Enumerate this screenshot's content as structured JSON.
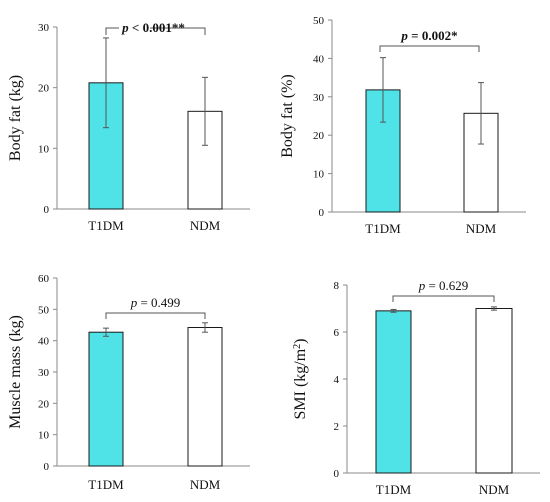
{
  "colors": {
    "t1dm": "#4fe3e8",
    "ndm": "#ffffff",
    "outline": "#1a1a1a",
    "axis": "#8a8a8a"
  },
  "chart_data": [
    {
      "type": "bar",
      "categories": [
        "T1DM",
        "NDM"
      ],
      "values": [
        20.8,
        16.1
      ],
      "errors": [
        7.4,
        5.6
      ],
      "ylabel": "Body fat (kg)",
      "ylim": [
        0,
        30
      ],
      "yticks": [
        "0",
        "10",
        "20",
        "30"
      ],
      "annotation": {
        "p": "p",
        "rest": " < 0.001**",
        "bold": true
      },
      "bracket_style": "split"
    },
    {
      "type": "bar",
      "categories": [
        "T1DM",
        "NDM"
      ],
      "values": [
        31.8,
        25.7
      ],
      "errors": [
        8.4,
        8.0
      ],
      "ylabel": "Body fat (%)",
      "ylim": [
        0,
        50
      ],
      "yticks": [
        "0",
        "10",
        "20",
        "30",
        "40",
        "50"
      ],
      "annotation": {
        "p": "p",
        "rest": " = 0.002*",
        "bold": true
      },
      "bracket_style": "bracket"
    },
    {
      "type": "bar",
      "categories": [
        "T1DM",
        "NDM"
      ],
      "values": [
        42.7,
        44.2
      ],
      "errors": [
        1.3,
        1.5
      ],
      "ylabel": "Muscle mass (kg)",
      "ylim": [
        0,
        60
      ],
      "yticks": [
        "0",
        "10",
        "20",
        "30",
        "40",
        "50",
        "60"
      ],
      "annotation": {
        "p": "p",
        "rest": " = 0.499",
        "bold": false
      },
      "bracket_style": "bracket"
    },
    {
      "type": "bar",
      "categories": [
        "T1DM",
        "NDM"
      ],
      "values": [
        6.9,
        7.0
      ],
      "errors": [
        0.06,
        0.07
      ],
      "ylabel": "SMI (kg/m",
      "ylabel_sup": "2",
      "ylabel_tail": ")",
      "ylim": [
        0,
        8
      ],
      "yticks": [
        "0",
        "2",
        "4",
        "6",
        "8"
      ],
      "annotation": {
        "p": "p",
        "rest": " = 0.629",
        "bold": false
      },
      "bracket_style": "bracket"
    }
  ]
}
